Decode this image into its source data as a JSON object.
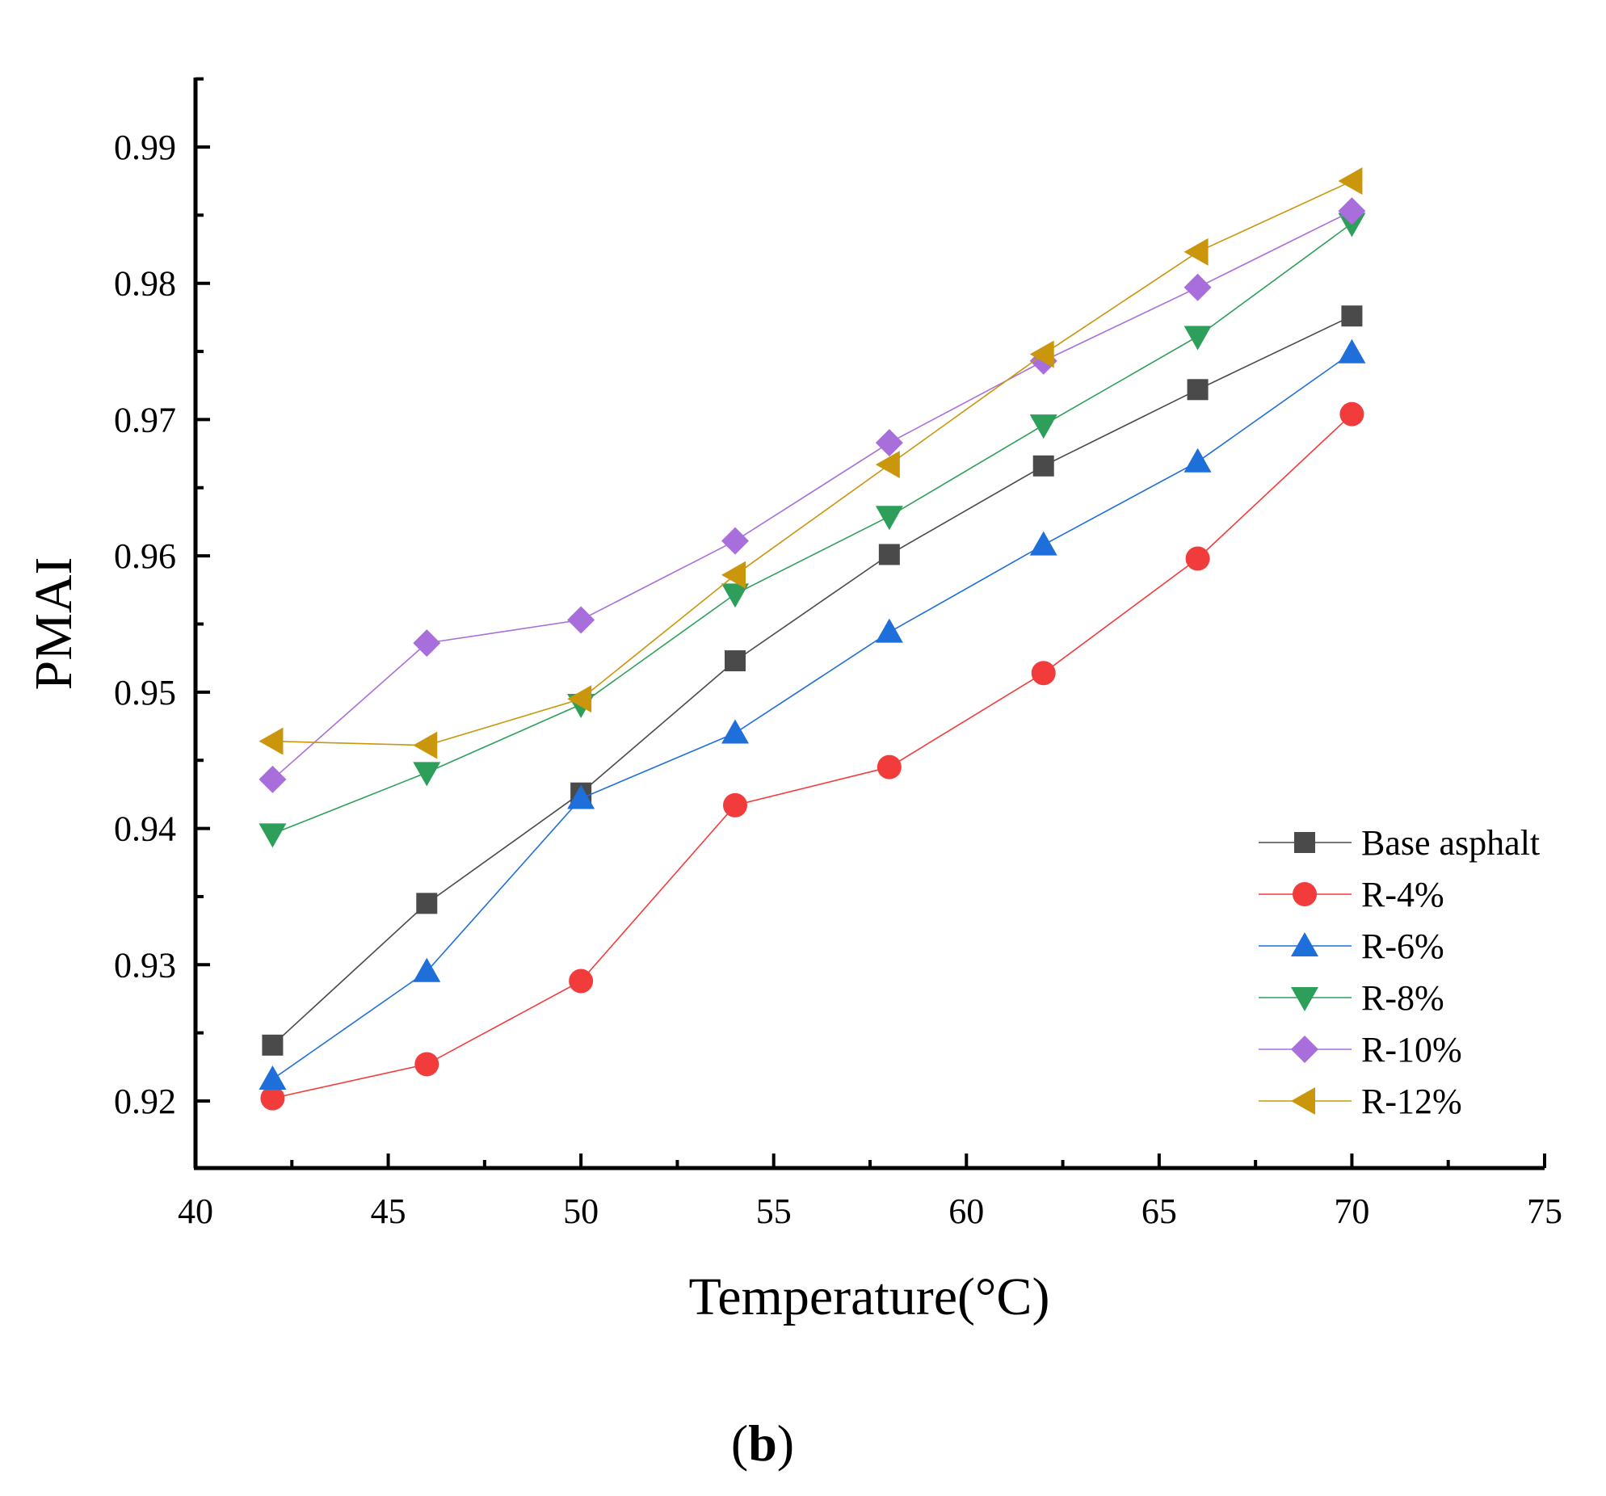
{
  "chart_data": {
    "type": "line",
    "title": "",
    "xlabel": "Temperature(°C)",
    "ylabel": "PMAI",
    "panel_label_open": "(",
    "panel_label_letter": "b",
    "panel_label_close": ")",
    "xlim": [
      40,
      75
    ],
    "ylim": [
      0.915,
      0.995
    ],
    "x_ticks": [
      40,
      45,
      50,
      55,
      60,
      65,
      70,
      75
    ],
    "x_tick_labels": [
      "40",
      "45",
      "50",
      "55",
      "60",
      "65",
      "70",
      "75"
    ],
    "y_ticks": [
      0.92,
      0.93,
      0.94,
      0.95,
      0.96,
      0.97,
      0.98,
      0.99
    ],
    "y_tick_labels": [
      "0.92",
      "0.93",
      "0.94",
      "0.95",
      "0.96",
      "0.97",
      "0.98",
      "0.99"
    ],
    "grid": false,
    "legend_position": "bottom-right",
    "x": [
      42,
      46,
      50,
      54,
      58,
      62,
      66,
      70
    ],
    "series": [
      {
        "name": "Base asphalt",
        "marker": "square",
        "color": "#4a4a4a",
        "values": [
          0.9241,
          0.9345,
          0.9426,
          0.9523,
          0.9601,
          0.9666,
          0.9722,
          0.9776
        ]
      },
      {
        "name": "R-4%",
        "marker": "circle",
        "color": "#f23c3c",
        "values": [
          0.9202,
          0.9227,
          0.9288,
          0.9417,
          0.9445,
          0.9514,
          0.9598,
          0.9704
        ]
      },
      {
        "name": "R-6%",
        "marker": "triangle-up",
        "color": "#1f6fdb",
        "values": [
          0.9216,
          0.9295,
          0.9422,
          0.947,
          0.9544,
          0.9608,
          0.9669,
          0.9749
        ]
      },
      {
        "name": "R-8%",
        "marker": "triangle-down",
        "color": "#2e9f5b",
        "values": [
          0.9396,
          0.9441,
          0.9491,
          0.9572,
          0.9629,
          0.9696,
          0.9761,
          0.9844
        ]
      },
      {
        "name": "R-10%",
        "marker": "diamond",
        "color": "#a86fdc",
        "values": [
          0.9436,
          0.9536,
          0.9553,
          0.9611,
          0.9683,
          0.9743,
          0.9797,
          0.9853
        ]
      },
      {
        "name": "R-12%",
        "marker": "triangle-left",
        "color": "#c9960c",
        "values": [
          0.9464,
          0.9461,
          0.9495,
          0.9586,
          0.9667,
          0.9748,
          0.9823,
          0.9875
        ]
      }
    ]
  }
}
